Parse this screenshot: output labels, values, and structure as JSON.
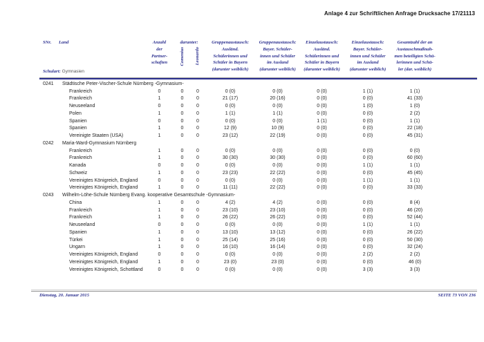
{
  "doc_header": {
    "title": "Anlage 4 zur Schriftlichen Anfrage Drucksache 17/21113"
  },
  "table": {
    "head": {
      "snr": "SNr.",
      "land": "Land",
      "schulart_label": "Schulart:",
      "schulart_value": "Gymnasien",
      "anzahl": "Anzahl\nder\nPartner-\nschaften",
      "darunter": "darunter:",
      "comenius": "Comenius",
      "leonardo": "Leonardo",
      "gruppe_ausland_bayern": "Gruppenaustausch:\nAusländ.\nSchülerinnen und\nSchüler in Bayern\n(darunter weiblich)",
      "gruppe_bayer_ausland": "Gruppenaustausch:\nBayer. Schüler-\ninnen und Schüler\nim Ausland\n(darunter weiblich)",
      "einzel_ausland_bayern": "Einzelaustausch:\nAusländ.\nSchülerinnen und\nSchüler in Bayern\n(darunter weiblich)",
      "einzel_bayer_ausland": "Einzelaustausch:\nBayer. Schüler-\ninnen und Schüler\nim Ausland\n(darunter weiblich)",
      "gesamtzahl": "Gesamtzahl der an\nAustauschmaßnah-\nmen beteiligten Schü-\nlerinnen und Schü-\nler (dar. weiblich)"
    },
    "groups": [
      {
        "snr": "0241",
        "school": "Städtische Peter-Vischer-Schule Nürnberg -Gymnasium-",
        "rows": [
          [
            "Frankreich",
            "0",
            "0",
            "0",
            "0 (0)",
            "0 (0)",
            "0 (0)",
            "1 (1)",
            "1 (1)"
          ],
          [
            "Frankreich",
            "1",
            "0",
            "0",
            "21 (17)",
            "20 (16)",
            "0 (0)",
            "0 (0)",
            "41 (33)"
          ],
          [
            "Neuseeland",
            "0",
            "0",
            "0",
            "0 (0)",
            "0 (0)",
            "0 (0)",
            "1 (0)",
            "1 (0)"
          ],
          [
            "Polen",
            "1",
            "0",
            "0",
            "1 (1)",
            "1 (1)",
            "0 (0)",
            "0 (0)",
            "2 (2)"
          ],
          [
            "Spanien",
            "0",
            "0",
            "0",
            "0 (0)",
            "0 (0)",
            "1 (1)",
            "0 (0)",
            "1 (1)"
          ],
          [
            "Spanien",
            "1",
            "0",
            "0",
            "12 (9)",
            "10 (9)",
            "0 (0)",
            "0 (0)",
            "22 (18)"
          ],
          [
            "Vereinigte Staaten (USA)",
            "1",
            "0",
            "0",
            "23 (12)",
            "22 (19)",
            "0 (0)",
            "0 (0)",
            "45 (31)"
          ]
        ]
      },
      {
        "snr": "0242",
        "school": "Maria-Ward-Gymnasium Nürnberg",
        "rows": [
          [
            "Frankreich",
            "1",
            "0",
            "0",
            "0 (0)",
            "0 (0)",
            "0 (0)",
            "0 (0)",
            "0 (0)"
          ],
          [
            "Frankreich",
            "1",
            "0",
            "0",
            "30 (30)",
            "30 (30)",
            "0 (0)",
            "0 (0)",
            "60 (60)"
          ],
          [
            "Kanada",
            "0",
            "0",
            "0",
            "0 (0)",
            "0 (0)",
            "0 (0)",
            "1 (1)",
            "1 (1)"
          ],
          [
            "Schweiz",
            "1",
            "0",
            "0",
            "23 (23)",
            "22 (22)",
            "0 (0)",
            "0 (0)",
            "45 (45)"
          ],
          [
            "Vereinigtes Königreich, England",
            "0",
            "0",
            "0",
            "0 (0)",
            "0 (0)",
            "0 (0)",
            "1 (1)",
            "1 (1)"
          ],
          [
            "Vereinigtes Königreich, England",
            "1",
            "0",
            "0",
            "11 (11)",
            "22 (22)",
            "0 (0)",
            "0 (0)",
            "33 (33)"
          ]
        ]
      },
      {
        "snr": "0243",
        "school": "Wilhelm-Löhe-Schule Nürnberg Evang. kooperative Gesamtschule -Gymnasium-",
        "rows": [
          [
            "China",
            "1",
            "0",
            "0",
            "4 (2)",
            "4 (2)",
            "0 (0)",
            "0 (0)",
            "8 (4)"
          ],
          [
            "Frankreich",
            "1",
            "0",
            "0",
            "23 (10)",
            "23 (10)",
            "0 (0)",
            "0 (0)",
            "46 (20)"
          ],
          [
            "Frankreich",
            "1",
            "0",
            "0",
            "26 (22)",
            "26 (22)",
            "0 (0)",
            "0 (0)",
            "52 (44)"
          ],
          [
            "Neuseeland",
            "0",
            "0",
            "0",
            "0 (0)",
            "0 (0)",
            "0 (0)",
            "1 (1)",
            "1 (1)"
          ],
          [
            "Spanien",
            "1",
            "0",
            "0",
            "13 (10)",
            "13 (12)",
            "0 (0)",
            "0 (0)",
            "26 (22)"
          ],
          [
            "Türkei",
            "1",
            "0",
            "0",
            "25 (14)",
            "25 (16)",
            "0 (0)",
            "0 (0)",
            "50 (30)"
          ],
          [
            "Ungarn",
            "1",
            "0",
            "0",
            "16 (10)",
            "16 (14)",
            "0 (0)",
            "0 (0)",
            "32 (24)"
          ],
          [
            "Vereinigtes Königreich, England",
            "0",
            "0",
            "0",
            "0 (0)",
            "0 (0)",
            "0 (0)",
            "2 (2)",
            "2 (2)"
          ],
          [
            "Vereinigtes Königreich, England",
            "1",
            "0",
            "0",
            "23 (0)",
            "23 (0)",
            "0 (0)",
            "0 (0)",
            "46 (0)"
          ],
          [
            "Vereinigtes Königreich, Schottland",
            "0",
            "0",
            "0",
            "0 (0)",
            "0 (0)",
            "0 (0)",
            "3 (3)",
            "3 (3)"
          ]
        ]
      }
    ]
  },
  "footer": {
    "date": "Dienstag, 20. Januar 2015",
    "page": "SEITE 73 VON 236"
  },
  "colors": {
    "navy": "#2b2f8f",
    "text": "#222222"
  }
}
